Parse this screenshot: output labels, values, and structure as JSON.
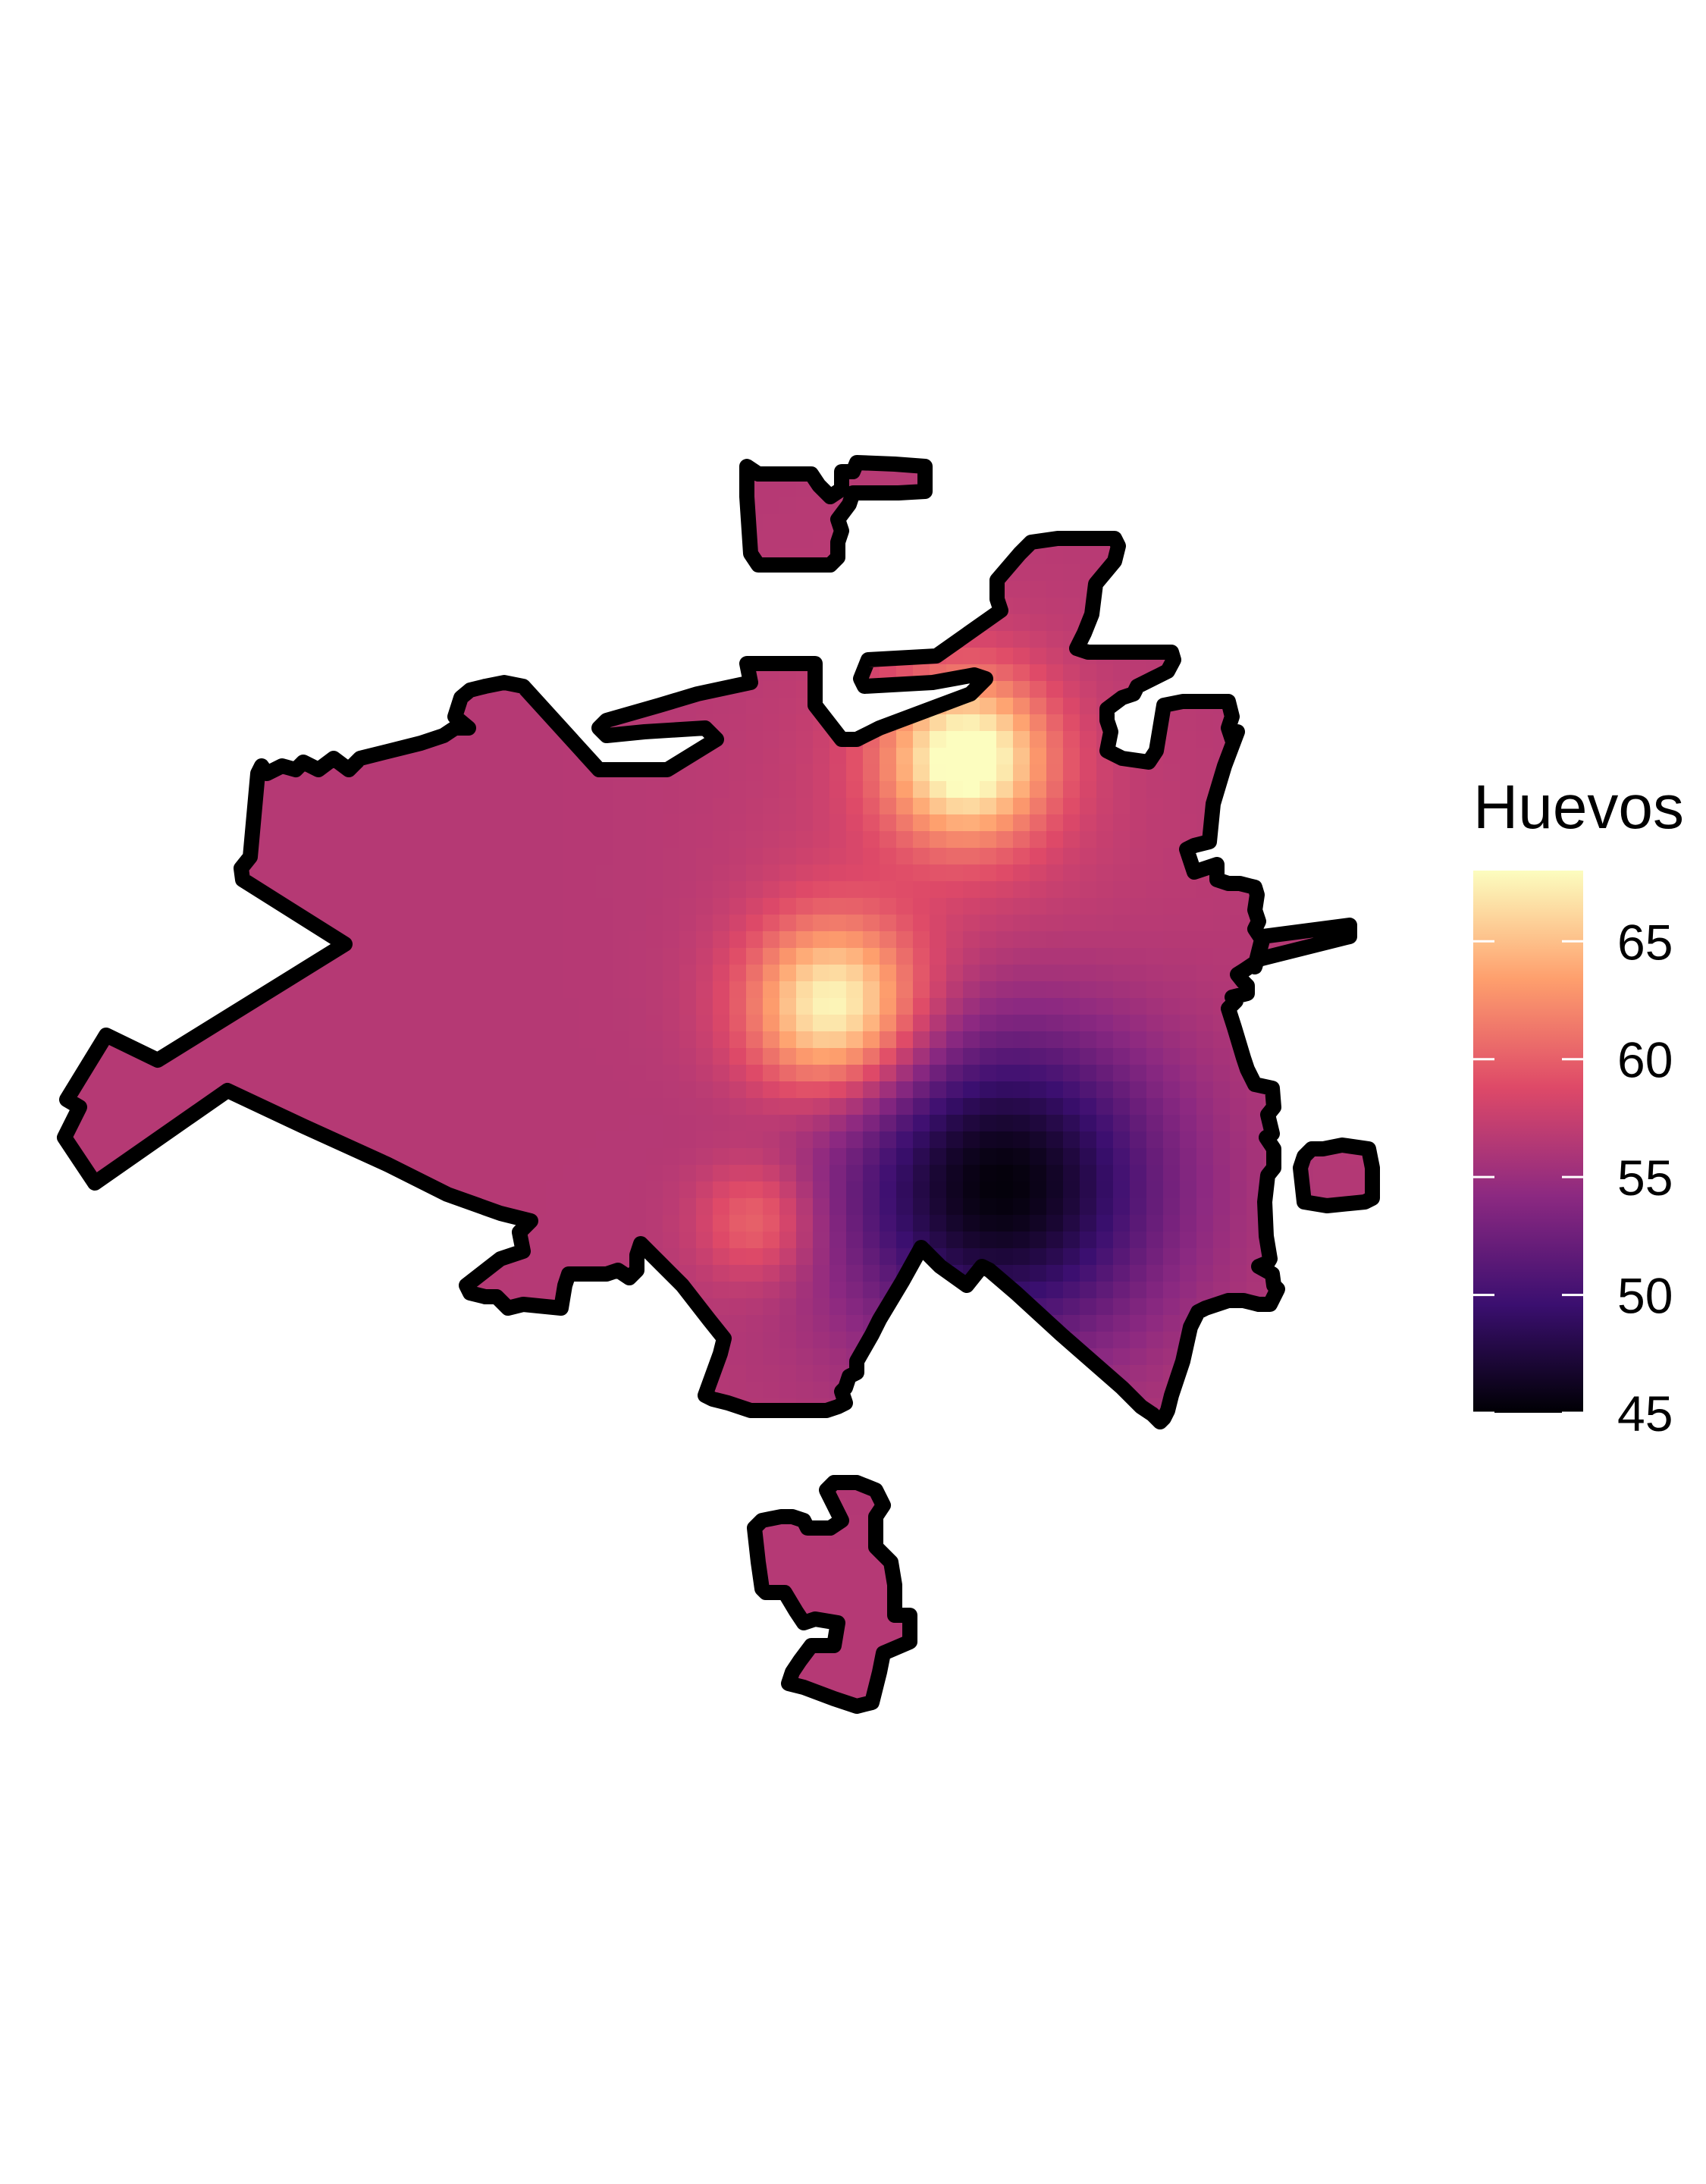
{
  "legend": {
    "title": "Huevos",
    "min": 45,
    "max": 68,
    "ticks": [
      {
        "value": 45,
        "label": "45"
      },
      {
        "value": 50,
        "label": "50"
      },
      {
        "value": 55,
        "label": "55"
      },
      {
        "value": 60,
        "label": "60"
      },
      {
        "value": 65,
        "label": "65"
      }
    ],
    "palette": "magma",
    "colors": [
      "#000004",
      "#3b0f70",
      "#8c2981",
      "#de4968",
      "#fe9f6d",
      "#fcfdbf"
    ]
  },
  "field": {
    "base_value": 56.5,
    "hotspots": [
      {
        "label": "north-east peak",
        "value": 68.5
      },
      {
        "label": "central peak",
        "value": 68
      },
      {
        "label": "south-central high",
        "value": 61
      }
    ],
    "coldspot": {
      "label": "south-east low",
      "value": 45
    }
  },
  "outline_color": "#000000"
}
